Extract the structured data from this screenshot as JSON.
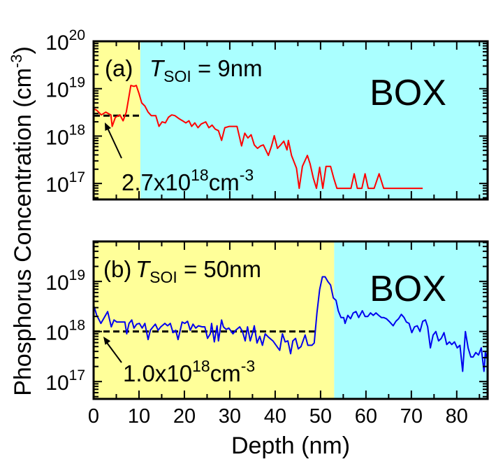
{
  "chart_data": [
    {
      "type": "line",
      "panel_label": "(a)",
      "condition": {
        "symbol": "T",
        "subscript": "SOI",
        "value": " = 9nm"
      },
      "region_label": "BOX",
      "regions": [
        {
          "name": "SOI",
          "from": 0,
          "to": 10.3,
          "color": "#ffff99"
        },
        {
          "name": "BOX",
          "from": 10.3,
          "to": 86.8,
          "color": "#aaffff"
        }
      ],
      "ylabel": "Phosphorus Concentration (cm-3)",
      "ylabel_parts": {
        "main": "Phosphorus Concentration (cm",
        "sup": "-3",
        "end": ")"
      },
      "yscale": "log",
      "ylim": [
        4.6e+16,
        1e+20
      ],
      "xlim": [
        0,
        86.8
      ],
      "yticks": [
        {
          "value": 1e+20,
          "base": "10",
          "exp": "20"
        },
        {
          "value": 1e+19,
          "base": "10",
          "exp": "19"
        },
        {
          "value": 1e+18,
          "base": "10",
          "exp": "18"
        },
        {
          "value": 1e+17,
          "base": "10",
          "exp": "17"
        }
      ],
      "reference_line": {
        "value": 2.7e+18,
        "from": 0,
        "to": 10.6,
        "style": "dashed",
        "label": {
          "main": "2.7x10",
          "sup": "18",
          "unit": "cm",
          "unit_sup": "-3"
        }
      },
      "series": [
        {
          "color": "#ff0000",
          "points": [
            [
              0,
              3.8e+18
            ],
            [
              0.7,
              3.5e+18
            ],
            [
              1.7,
              2.8e+18
            ],
            [
              2.7,
              3.2e+18
            ],
            [
              3.8,
              2.8e+18
            ],
            [
              4.1,
              1.6e+18
            ],
            [
              4.8,
              2.5e+18
            ],
            [
              5.8,
              2.8e+18
            ],
            [
              6.5,
              2.1e+18
            ],
            [
              7.2,
              3.2e+18
            ],
            [
              8.2,
              1.17e+19
            ],
            [
              8.9,
              1.12e+19
            ],
            [
              9.4,
              1.17e+19
            ],
            [
              10.0,
              7.9e+18
            ],
            [
              10.6,
              5e+18
            ],
            [
              11.3,
              4.3e+18
            ],
            [
              12.0,
              3.2e+18
            ],
            [
              12.7,
              2.7e+18
            ],
            [
              13.7,
              2.7e+18
            ],
            [
              14.4,
              1.6e+18
            ],
            [
              15.1,
              2e+18
            ],
            [
              15.8,
              1.9e+18
            ],
            [
              16.5,
              2.5e+18
            ],
            [
              17.2,
              2.8e+18
            ],
            [
              17.9,
              2.7e+18
            ],
            [
              18.9,
              2.3e+18
            ],
            [
              19.6,
              2.1e+18
            ],
            [
              20.3,
              1.9e+18
            ],
            [
              21.0,
              2.1e+18
            ],
            [
              21.6,
              1.6e+18
            ],
            [
              22.3,
              1.9e+18
            ],
            [
              23.0,
              1.5e+18
            ],
            [
              23.7,
              1.8e+18
            ],
            [
              24.7,
              2e+18
            ],
            [
              25.4,
              1.5e+18
            ],
            [
              26.1,
              1.7e+18
            ],
            [
              26.8,
              1.4e+18
            ],
            [
              27.5,
              1.3e+18
            ],
            [
              28.2,
              8.1e+17
            ],
            [
              28.9,
              1.5e+18
            ],
            [
              29.9,
              1.6e+18
            ],
            [
              30.9,
              1.6e+18
            ],
            [
              31.6,
              1.6e+18
            ],
            [
              32.6,
              6.2e+17
            ],
            [
              33.3,
              1.15e+18
            ],
            [
              34.0,
              9.1e+17
            ],
            [
              34.7,
              1.07e+18
            ],
            [
              35.4,
              6.5e+17
            ],
            [
              36.1,
              5.5e+17
            ],
            [
              36.8,
              6.2e+17
            ],
            [
              37.4,
              6.5e+17
            ],
            [
              38.5,
              3.9e+17
            ],
            [
              39.2,
              6.2e+17
            ],
            [
              39.8,
              1.02e+18
            ],
            [
              40.5,
              5.5e+17
            ],
            [
              41.2,
              6.5e+17
            ],
            [
              41.9,
              7.8e+17
            ],
            [
              42.6,
              5.1e+17
            ],
            [
              42.9,
              8.1e+17
            ],
            [
              43.6,
              3.9e+17
            ],
            [
              44.7,
              2.1e+17
            ],
            [
              45.3,
              7.9e+16
            ],
            [
              46.0,
              2.3e+17
            ],
            [
              47.1,
              3.9e+17
            ],
            [
              47.7,
              2.6e+17
            ],
            [
              48.4,
              1.3e+17
            ],
            [
              49.1,
              7.9e+16
            ],
            [
              49.8,
              2.2e+17
            ],
            [
              50.5,
              7.9e+16
            ],
            [
              51.2,
              2.3e+17
            ],
            [
              52.2,
              2.3e+17
            ],
            [
              52.9,
              1.3e+17
            ],
            [
              53.6,
              7.9e+16
            ],
            [
              54.6,
              7.9e+16
            ],
            [
              55.6,
              7.9e+16
            ],
            [
              56.7,
              7.9e+16
            ],
            [
              57.4,
              1.6e+17
            ],
            [
              58.1,
              7.9e+16
            ],
            [
              59.1,
              7.9e+16
            ],
            [
              59.8,
              1.6e+17
            ],
            [
              60.5,
              7.9e+16
            ],
            [
              61.8,
              7.9e+16
            ],
            [
              62.9,
              1.6e+17
            ],
            [
              63.9,
              7.9e+16
            ],
            [
              66.0,
              7.9e+16
            ],
            [
              68.7,
              7.9e+16
            ],
            [
              72.5,
              7.9e+16
            ]
          ]
        }
      ]
    },
    {
      "type": "line",
      "panel_label": "(b)",
      "condition": {
        "symbol": "T",
        "subscript": "SOI",
        "value": " = 50nm"
      },
      "region_label": "BOX",
      "regions": [
        {
          "name": "SOI",
          "from": 0,
          "to": 53,
          "color": "#ffff99"
        },
        {
          "name": "BOX",
          "from": 53,
          "to": 86.8,
          "color": "#aaffff"
        }
      ],
      "xlabel": "Depth (nm)",
      "yscale": "log",
      "ylim": [
        4.5e+16,
        6.3e+19
      ],
      "xlim": [
        0,
        86.8
      ],
      "xticks": [
        "0",
        "10",
        "20",
        "30",
        "40",
        "50",
        "60",
        "70",
        "80"
      ],
      "yticks": [
        {
          "value": 1e+19,
          "base": "10",
          "exp": "19"
        },
        {
          "value": 1e+18,
          "base": "10",
          "exp": "18"
        },
        {
          "value": 1e+17,
          "base": "10",
          "exp": "17"
        }
      ],
      "reference_line": {
        "value": 1e+18,
        "from": 0,
        "to": 49.2,
        "style": "dashed",
        "label": {
          "main": "1.0x10",
          "sup": "18",
          "unit": "cm",
          "unit_sup": "-3"
        }
      },
      "series": [
        {
          "color": "#0000ee",
          "points": [
            [
              0.1,
              3.2e+18
            ],
            [
              0.7,
              2.1e+18
            ],
            [
              1.6,
              1.45e+18
            ],
            [
              2.2,
              1.8e+18
            ],
            [
              3.1,
              2.5e+18
            ],
            [
              3.9,
              1.24e+18
            ],
            [
              4.5,
              1.7e+18
            ],
            [
              5.1,
              1.55e+18
            ],
            [
              6.0,
              1.55e+18
            ],
            [
              6.9,
              1.55e+18
            ],
            [
              7.3,
              9e+17
            ],
            [
              7.8,
              1.45e+18
            ],
            [
              8.4,
              1.7e+18
            ],
            [
              8.9,
              1.17e+18
            ],
            [
              9.5,
              1.4e+18
            ],
            [
              10.1,
              1.45e+18
            ],
            [
              10.7,
              1.17e+18
            ],
            [
              11.3,
              1.45e+18
            ],
            [
              12.0,
              6.9e+17
            ],
            [
              12.5,
              1.06e+18
            ],
            [
              13.1,
              1.24e+18
            ],
            [
              13.6,
              1.4e+18
            ],
            [
              14.2,
              1.06e+18
            ],
            [
              14.8,
              1.24e+18
            ],
            [
              15.7,
              1.45e+18
            ],
            [
              16.3,
              1.3e+18
            ],
            [
              16.9,
              1.45e+18
            ],
            [
              17.5,
              9.5e+17
            ],
            [
              18.1,
              1.06e+18
            ],
            [
              18.6,
              6.9e+17
            ],
            [
              19.5,
              1.55e+18
            ],
            [
              20.1,
              1.45e+18
            ],
            [
              20.7,
              1.6e+18
            ],
            [
              21.3,
              1.06e+18
            ],
            [
              21.9,
              1.4e+18
            ],
            [
              22.5,
              1.17e+18
            ],
            [
              23.1,
              1.3e+18
            ],
            [
              23.9,
              1.24e+18
            ],
            [
              24.5,
              1.24e+18
            ],
            [
              25.1,
              7.3e+17
            ],
            [
              25.7,
              9e+17
            ],
            [
              26.0,
              1.45e+18
            ],
            [
              26.6,
              6.2e+17
            ],
            [
              27.2,
              1.3e+18
            ],
            [
              27.5,
              6.5e+17
            ],
            [
              28.2,
              1.7e+18
            ],
            [
              28.6,
              1.24e+18
            ],
            [
              29.2,
              1.1e+18
            ],
            [
              29.8,
              1.17e+18
            ],
            [
              30.7,
              9e+17
            ],
            [
              31.3,
              1.06e+18
            ],
            [
              32.2,
              1.24e+18
            ],
            [
              32.8,
              1e+18
            ],
            [
              33.4,
              6.5e+17
            ],
            [
              33.9,
              1.24e+18
            ],
            [
              34.5,
              6.5e+17
            ],
            [
              35.1,
              1e+18
            ],
            [
              35.4,
              1.3e+18
            ],
            [
              36.0,
              5.9e+17
            ],
            [
              36.6,
              8e+17
            ],
            [
              37.2,
              5.3e+17
            ],
            [
              37.8,
              9e+17
            ],
            [
              38.6,
              7.6e+17
            ],
            [
              39.5,
              6.5e+17
            ],
            [
              40.4,
              5e+17
            ],
            [
              41.0,
              4.2e+17
            ],
            [
              41.6,
              9e+17
            ],
            [
              42.2,
              6.2e+17
            ],
            [
              42.8,
              6.5e+17
            ],
            [
              43.4,
              3.6e+17
            ],
            [
              43.9,
              6.5e+17
            ],
            [
              44.5,
              7.3e+17
            ],
            [
              45.1,
              4.5e+17
            ],
            [
              45.7,
              5e+17
            ],
            [
              46.6,
              8.5e+17
            ],
            [
              47.2,
              5.3e+17
            ],
            [
              48.1,
              5.3e+17
            ],
            [
              48.6,
              5.9e+17
            ],
            [
              49.2,
              2.35e+18
            ],
            [
              49.8,
              6.9e+18
            ],
            [
              50.4,
              1.24e+19
            ],
            [
              51.0,
              1.24e+19
            ],
            [
              51.6,
              1e+19
            ],
            [
              52.2,
              8.5e+18
            ],
            [
              52.8,
              4.7e+18
            ],
            [
              53.4,
              4.2e+18
            ],
            [
              53.9,
              2.6e+18
            ],
            [
              54.5,
              1.9e+18
            ],
            [
              55.1,
              1.9e+18
            ],
            [
              55.4,
              1.45e+18
            ],
            [
              56.0,
              2.1e+18
            ],
            [
              56.6,
              1.8e+18
            ],
            [
              57.2,
              2.35e+18
            ],
            [
              57.8,
              2.5e+18
            ],
            [
              58.4,
              1.9e+18
            ],
            [
              59.2,
              2.6e+18
            ],
            [
              59.8,
              2e+18
            ],
            [
              60.4,
              2e+18
            ],
            [
              61.0,
              2.35e+18
            ],
            [
              61.6,
              2.1e+18
            ],
            [
              62.2,
              2.35e+18
            ],
            [
              62.8,
              2.1e+18
            ],
            [
              63.4,
              1.9e+18
            ],
            [
              63.9,
              1.9e+18
            ],
            [
              64.5,
              1.8e+18
            ],
            [
              65.1,
              1.6e+18
            ],
            [
              66.0,
              1.3e+18
            ],
            [
              66.6,
              1.6e+18
            ],
            [
              67.2,
              1.8e+18
            ],
            [
              67.8,
              2.2e+18
            ],
            [
              68.4,
              1.9e+18
            ],
            [
              68.9,
              1.55e+18
            ],
            [
              69.5,
              1.45e+18
            ],
            [
              70.1,
              9.5e+17
            ],
            [
              70.7,
              1.24e+18
            ],
            [
              71.3,
              1.3e+18
            ],
            [
              71.9,
              1e+18
            ],
            [
              72.5,
              1.6e+18
            ],
            [
              73.1,
              1.7e+18
            ],
            [
              73.6,
              1.24e+18
            ],
            [
              74.2,
              4.7e+17
            ],
            [
              74.8,
              8.5e+17
            ],
            [
              75.4,
              1e+18
            ],
            [
              76.0,
              6.5e+17
            ],
            [
              76.6,
              7.3e+17
            ],
            [
              77.2,
              9.5e+17
            ],
            [
              77.8,
              5.5e+17
            ],
            [
              78.4,
              6.2e+17
            ],
            [
              78.9,
              5.5e+17
            ],
            [
              79.5,
              6.2e+17
            ],
            [
              80.1,
              4.7e+17
            ],
            [
              80.7,
              5.3e+17
            ],
            [
              81.3,
              1.6e+17
            ],
            [
              81.9,
              1e+18
            ],
            [
              82.5,
              4.7e+17
            ],
            [
              83.1,
              3.1e+17
            ],
            [
              83.6,
              3.1e+17
            ],
            [
              84.2,
              3.8e+17
            ],
            [
              84.8,
              3.4e+17
            ],
            [
              85.4,
              4.7e+17
            ],
            [
              86.0,
              1.6e+17
            ],
            [
              86.3,
              3.8e+17
            ],
            [
              86.9,
              2.5e+17
            ]
          ]
        }
      ]
    }
  ]
}
